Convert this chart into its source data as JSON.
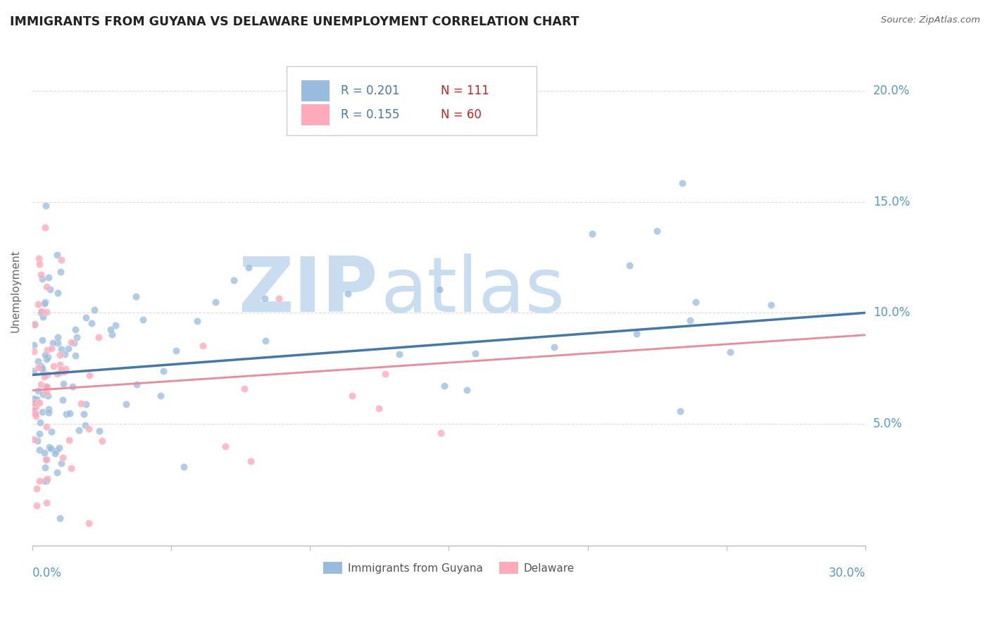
{
  "title": "IMMIGRANTS FROM GUYANA VS DELAWARE UNEMPLOYMENT CORRELATION CHART",
  "source": "Source: ZipAtlas.com",
  "ylabel": "Unemployment",
  "legend_r1": "R = 0.201",
  "legend_n1": "N = 111",
  "legend_r2": "R = 0.155",
  "legend_n2": "N = 60",
  "color_blue": "#99BBDD",
  "color_pink": "#FFAABB",
  "color_blue_line": "#4477AA",
  "color_pink_line": "#EE8899",
  "color_axis_label": "#5599CC",
  "watermark_zip": "ZIP",
  "watermark_atlas": "atlas",
  "watermark_color": "#C8DDEF",
  "title_fontsize": 12.5,
  "axis_label_fontsize": 11,
  "tick_label_fontsize": 12,
  "xlim": [
    0.0,
    0.3
  ],
  "ylim": [
    -0.005,
    0.225
  ],
  "yticks": [
    0.05,
    0.1,
    0.15,
    0.2
  ],
  "ytick_labels": [
    "5.0%",
    "10.0%",
    "15.0%",
    "20.0%"
  ],
  "blue_trend_x0": 0.0,
  "blue_trend_x1": 0.3,
  "blue_trend_y0": 0.072,
  "blue_trend_y1": 0.1,
  "pink_trend_x0": 0.0,
  "pink_trend_x1": 0.3,
  "pink_trend_y0": 0.065,
  "pink_trend_y1": 0.09,
  "grid_color": "#DDDDDD",
  "background_color": "#FFFFFF",
  "legend_label1": "Immigrants from Guyana",
  "legend_label2": "Delaware"
}
